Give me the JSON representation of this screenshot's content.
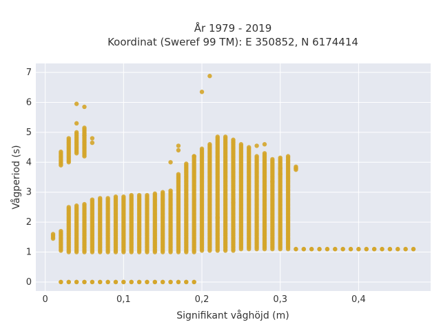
{
  "chart_data": {
    "type": "scatter",
    "title_line1": "År 1979 - 2019",
    "title_line2": "Koordinat (Sweref 99 TM): E 350852, N 6174414",
    "xlabel": "Signifikant våghöjd (m)",
    "ylabel": "Vågperiod (s)",
    "xlim": [
      -0.012,
      0.492
    ],
    "ylim": [
      -0.3,
      7.3
    ],
    "x_ticks": [
      0,
      0.1,
      0.2,
      0.3,
      0.4
    ],
    "x_tick_labels": [
      "0",
      "0,1",
      "0,2",
      "0,3",
      "0,4"
    ],
    "y_ticks": [
      0,
      1,
      2,
      3,
      4,
      5,
      6,
      7
    ],
    "y_tick_labels": [
      "0",
      "1",
      "2",
      "3",
      "4",
      "5",
      "6",
      "7"
    ],
    "grid": true,
    "colors": {
      "marker": "#d4a52a",
      "plot_bg": "#e5e8f0",
      "grid": "#ffffff"
    },
    "columns": [
      [
        0.01,
        1.45,
        1.6
      ],
      [
        0.02,
        0.0,
        0.0
      ],
      [
        0.02,
        1.05,
        1.7
      ],
      [
        0.02,
        3.9,
        4.35
      ],
      [
        0.03,
        0.0,
        0.0
      ],
      [
        0.03,
        1.0,
        2.5
      ],
      [
        0.03,
        4.0,
        4.8
      ],
      [
        0.04,
        0.0,
        0.0
      ],
      [
        0.04,
        1.0,
        2.55
      ],
      [
        0.04,
        4.3,
        5.0
      ],
      [
        0.05,
        0.0,
        0.0
      ],
      [
        0.05,
        1.0,
        2.6
      ],
      [
        0.05,
        4.2,
        5.15
      ],
      [
        0.06,
        0.0,
        0.0
      ],
      [
        0.06,
        1.0,
        2.75
      ],
      [
        0.07,
        0.0,
        0.0
      ],
      [
        0.07,
        1.0,
        2.8
      ],
      [
        0.08,
        0.0,
        0.0
      ],
      [
        0.08,
        1.0,
        2.8
      ],
      [
        0.09,
        0.0,
        0.0
      ],
      [
        0.09,
        1.0,
        2.85
      ],
      [
        0.1,
        0.0,
        0.0
      ],
      [
        0.1,
        1.0,
        2.85
      ],
      [
        0.11,
        0.0,
        0.0
      ],
      [
        0.11,
        1.0,
        2.9
      ],
      [
        0.12,
        0.0,
        0.0
      ],
      [
        0.12,
        1.0,
        2.9
      ],
      [
        0.13,
        0.0,
        0.0
      ],
      [
        0.13,
        1.0,
        2.9
      ],
      [
        0.14,
        0.0,
        0.0
      ],
      [
        0.14,
        1.0,
        2.95
      ],
      [
        0.15,
        0.0,
        0.0
      ],
      [
        0.15,
        1.0,
        3.0
      ],
      [
        0.16,
        0.0,
        0.0
      ],
      [
        0.16,
        1.0,
        3.05
      ],
      [
        0.17,
        0.0,
        0.0
      ],
      [
        0.17,
        1.0,
        3.55
      ],
      [
        0.18,
        0.0,
        0.0
      ],
      [
        0.18,
        1.0,
        3.9
      ],
      [
        0.19,
        0.0,
        0.0
      ],
      [
        0.19,
        1.0,
        4.2
      ],
      [
        0.2,
        1.05,
        4.45
      ],
      [
        0.21,
        1.05,
        4.55
      ],
      [
        0.22,
        1.05,
        4.85
      ],
      [
        0.23,
        1.05,
        4.85
      ],
      [
        0.24,
        1.05,
        4.75
      ],
      [
        0.25,
        1.1,
        4.6
      ],
      [
        0.26,
        1.1,
        4.5
      ],
      [
        0.27,
        1.1,
        4.2
      ],
      [
        0.28,
        1.1,
        4.3
      ],
      [
        0.29,
        1.1,
        4.1
      ],
      [
        0.3,
        1.1,
        4.15
      ],
      [
        0.31,
        1.1,
        4.2
      ],
      [
        0.32,
        1.1,
        1.1
      ],
      [
        0.32,
        3.75,
        3.85
      ],
      [
        0.33,
        1.1,
        1.1
      ],
      [
        0.34,
        1.1,
        1.1
      ],
      [
        0.35,
        1.1,
        1.1
      ],
      [
        0.36,
        1.1,
        1.1
      ],
      [
        0.37,
        1.1,
        1.1
      ],
      [
        0.38,
        1.1,
        1.1
      ],
      [
        0.39,
        1.1,
        1.1
      ],
      [
        0.4,
        1.1,
        1.1
      ],
      [
        0.41,
        1.1,
        1.1
      ],
      [
        0.42,
        1.1,
        1.1
      ],
      [
        0.43,
        1.1,
        1.1
      ],
      [
        0.44,
        1.1,
        1.1
      ],
      [
        0.45,
        1.1,
        1.1
      ],
      [
        0.46,
        1.1,
        1.1
      ],
      [
        0.47,
        1.1,
        1.1
      ]
    ],
    "points": [
      [
        0.04,
        5.95
      ],
      [
        0.05,
        5.85
      ],
      [
        0.04,
        5.3
      ],
      [
        0.05,
        4.9
      ],
      [
        0.06,
        4.8
      ],
      [
        0.06,
        4.65
      ],
      [
        0.16,
        4.0
      ],
      [
        0.17,
        4.55
      ],
      [
        0.17,
        4.4
      ],
      [
        0.18,
        3.95
      ],
      [
        0.19,
        4.2
      ],
      [
        0.17,
        3.6
      ],
      [
        0.2,
        6.35
      ],
      [
        0.21,
        6.88
      ],
      [
        0.21,
        4.6
      ],
      [
        0.27,
        4.55
      ],
      [
        0.28,
        4.6
      ],
      [
        0.29,
        3.35
      ],
      [
        0.3,
        3.6
      ],
      [
        0.3,
        3.8
      ],
      [
        0.32,
        3.8
      ],
      [
        0.22,
        2.15
      ],
      [
        0.24,
        2.65
      ]
    ]
  }
}
